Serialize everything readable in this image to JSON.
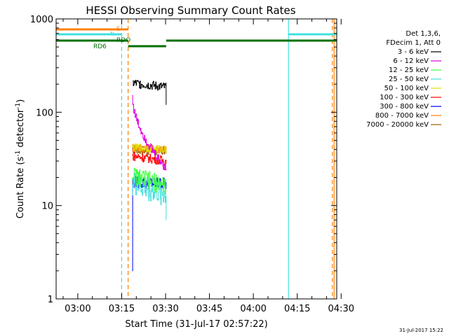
{
  "chart_data": {
    "type": "line",
    "title": "HESSI Observing Summary Count Rates",
    "xlabel": "Start Time (31-Jul-17 02:57:22)",
    "ylabel_main": "Count Rate (s",
    "ylabel_sup1": "-1",
    "ylabel_mid": " detector",
    "ylabel_sup2": "-1",
    "ylabel_end": ")",
    "yscale": "log",
    "ylim": [
      1,
      1000
    ],
    "xlim_minutes": [
      -7.4,
      88.5
    ],
    "x_ticks": [
      {
        "label": "03:00",
        "min": 0
      },
      {
        "label": "03:15",
        "min": 15
      },
      {
        "label": "03:30",
        "min": 30
      },
      {
        "label": "03:45",
        "min": 45
      },
      {
        "label": "04:00",
        "min": 60
      },
      {
        "label": "04:15",
        "min": 75
      },
      {
        "label": "04:30",
        "min": 90
      }
    ],
    "y_ticks": [
      {
        "label": "1",
        "value": 1
      },
      {
        "label": "10",
        "value": 10
      },
      {
        "label": "100",
        "value": 100
      },
      {
        "label": "1000",
        "value": 1000
      }
    ],
    "legend_header": [
      "Det 1,3,6,",
      "FDecim 1, Att 0"
    ],
    "legend": [
      {
        "label": "3 - 6 keV",
        "color": "#000000"
      },
      {
        "label": "6 - 12 keV",
        "color": "#e000e0"
      },
      {
        "label": "12 - 25 keV",
        "color": "#40ff40"
      },
      {
        "label": "25 - 50 keV",
        "color": "#40e0e0"
      },
      {
        "label": "50 - 100 keV",
        "color": "#e0e000"
      },
      {
        "label": "100 - 300 keV",
        "color": "#ff0000"
      },
      {
        "label": "300 - 800 keV",
        "color": "#0000ff"
      },
      {
        "label": "800 - 7000 keV",
        "color": "#ff8000"
      },
      {
        "label": "7000 - 20000 keV",
        "color": "#a06000"
      }
    ],
    "flag_labels": {
      "saa": "S",
      "night": "N",
      "decimation": "RDO",
      "decimation2": "RD6"
    },
    "flags": {
      "saa_intervals": [
        [
          -7.4,
          17.2
        ]
      ],
      "night_intervals": [
        [
          -7.4,
          15.0
        ],
        [
          72.0,
          88.5
        ]
      ],
      "decimation_intervals": [
        [
          -7.4,
          17.2
        ],
        [
          17.2,
          30.2
        ],
        [
          30.2,
          88.5
        ]
      ],
      "decimation_levels": [
        "high",
        "low",
        "high"
      ],
      "vertical_markers_minutes": [
        {
          "t": 15.0,
          "color": "#40e0e0",
          "dash": true
        },
        {
          "t": 17.2,
          "color": "#ff8000",
          "dash": true
        },
        {
          "t": 72.0,
          "color": "#40e0e0",
          "dash": false
        },
        {
          "t": 87.0,
          "color": "#ff8000",
          "dash": true
        },
        {
          "t": 87.6,
          "color": "#ff8000",
          "dash": false
        }
      ]
    },
    "series": [
      {
        "name": "3 - 6 keV",
        "color": "#000000",
        "t_start": 18.8,
        "t_end": 30.2,
        "start": 205,
        "end": 185,
        "noise": 0.05,
        "min_end": 120
      },
      {
        "name": "6 - 12 keV",
        "color": "#e000e0",
        "t_start": 18.6,
        "t_end": 30.2,
        "start": 150,
        "end": 25,
        "noise": 0.05,
        "decay": true
      },
      {
        "name": "12 - 25 keV",
        "color": "#40ff40",
        "t_start": 18.6,
        "t_end": 30.2,
        "start": 21,
        "end": 16,
        "noise": 0.1
      },
      {
        "name": "25 - 50 keV",
        "color": "#40e0e0",
        "t_start": 18.6,
        "t_end": 30.2,
        "start": 17,
        "end": 13,
        "noise": 0.14,
        "min_end": 7
      },
      {
        "name": "50 - 100 keV",
        "color": "#e0e000",
        "t_start": 18.6,
        "t_end": 30.2,
        "start": 42,
        "end": 40,
        "noise": 0.04
      },
      {
        "name": "100 - 300 keV",
        "color": "#ff0000",
        "t_start": 18.6,
        "t_end": 30.2,
        "start": 34,
        "end": 30,
        "noise": 0.05
      },
      {
        "name": "300 - 800 keV",
        "color": "#0000ff",
        "t_start": 18.6,
        "t_end": 30.2,
        "start": 18,
        "end": 17,
        "noise": 0.07,
        "spike_low": 2
      },
      {
        "name": "800 - 7000 keV",
        "color": "#ff8000",
        "t_start": 18.6,
        "t_end": 30.2,
        "start": 42,
        "end": 40,
        "noise": 0.05
      },
      {
        "name": "7000 - 20000 keV",
        "color": "#a06000",
        "t_start": 18.6,
        "t_end": 30.2,
        "start": 40,
        "end": 38,
        "noise": 0.05
      }
    ]
  },
  "footer_stamp": "31-Jul-2017 15:22"
}
